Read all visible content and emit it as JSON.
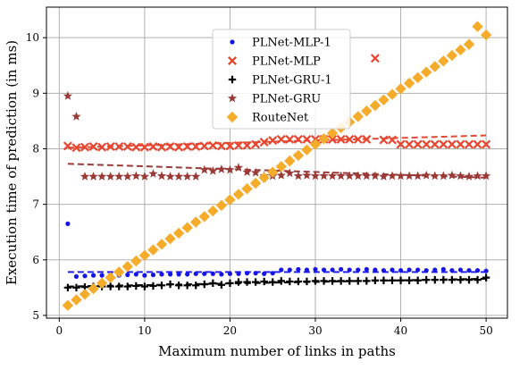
{
  "chart_data": {
    "type": "scatter",
    "title": "",
    "xlabel": "Maximum number of links in paths",
    "ylabel": "Execution time of prediction (in ms)",
    "xlim": [
      -1.5,
      52.5
    ],
    "ylim": [
      4.95,
      10.55
    ],
    "xticks": [
      0,
      10,
      20,
      30,
      40,
      50
    ],
    "yticks": [
      5,
      6,
      7,
      8,
      9,
      10
    ],
    "grid": true,
    "legend_position": "top-center",
    "series": [
      {
        "name": "PLNet-MLP-1",
        "marker": "dot",
        "color": "#1515e6",
        "trend_color": "#2222ee",
        "trend": [
          5.78,
          5.78
        ],
        "points": [
          [
            1,
            6.65
          ],
          [
            2,
            5.7
          ],
          [
            3,
            5.71
          ],
          [
            4,
            5.72
          ],
          [
            5,
            5.72
          ],
          [
            6,
            5.73
          ],
          [
            7,
            5.72
          ],
          [
            8,
            5.73
          ],
          [
            9,
            5.74
          ],
          [
            10,
            5.72
          ],
          [
            11,
            5.73
          ],
          [
            12,
            5.74
          ],
          [
            13,
            5.74
          ],
          [
            14,
            5.74
          ],
          [
            15,
            5.74
          ],
          [
            16,
            5.75
          ],
          [
            17,
            5.75
          ],
          [
            18,
            5.75
          ],
          [
            19,
            5.74
          ],
          [
            20,
            5.75
          ],
          [
            21,
            5.75
          ],
          [
            22,
            5.76
          ],
          [
            23,
            5.76
          ],
          [
            24,
            5.75
          ],
          [
            25,
            5.76
          ],
          [
            26,
            5.82
          ],
          [
            27,
            5.82
          ],
          [
            28,
            5.83
          ],
          [
            29,
            5.82
          ],
          [
            30,
            5.83
          ],
          [
            31,
            5.82
          ],
          [
            32,
            5.82
          ],
          [
            33,
            5.83
          ],
          [
            34,
            5.82
          ],
          [
            35,
            5.82
          ],
          [
            36,
            5.83
          ],
          [
            37,
            5.82
          ],
          [
            38,
            5.81
          ],
          [
            39,
            5.82
          ],
          [
            40,
            5.81
          ],
          [
            41,
            5.82
          ],
          [
            42,
            5.82
          ],
          [
            43,
            5.81
          ],
          [
            44,
            5.82
          ],
          [
            45,
            5.83
          ],
          [
            46,
            5.81
          ],
          [
            47,
            5.82
          ],
          [
            48,
            5.81
          ],
          [
            49,
            5.81
          ],
          [
            50,
            5.8
          ]
        ]
      },
      {
        "name": "PLNet-MLP",
        "marker": "x",
        "color": "#e8452e",
        "trend_color": "#e04a35",
        "trend": [
          8.02,
          8.24
        ],
        "points": [
          [
            1,
            8.05
          ],
          [
            2,
            8.02
          ],
          [
            3,
            8.03
          ],
          [
            4,
            8.04
          ],
          [
            5,
            8.03
          ],
          [
            6,
            8.04
          ],
          [
            7,
            8.04
          ],
          [
            8,
            8.04
          ],
          [
            9,
            8.03
          ],
          [
            10,
            8.03
          ],
          [
            11,
            8.04
          ],
          [
            12,
            8.03
          ],
          [
            13,
            8.04
          ],
          [
            14,
            8.03
          ],
          [
            15,
            8.04
          ],
          [
            16,
            8.04
          ],
          [
            17,
            8.05
          ],
          [
            18,
            8.06
          ],
          [
            19,
            8.05
          ],
          [
            20,
            8.05
          ],
          [
            21,
            8.06
          ],
          [
            22,
            8.06
          ],
          [
            23,
            8.08
          ],
          [
            24,
            8.12
          ],
          [
            25,
            8.15
          ],
          [
            26,
            8.17
          ],
          [
            27,
            8.17
          ],
          [
            28,
            8.17
          ],
          [
            29,
            8.17
          ],
          [
            30,
            8.17
          ],
          [
            31,
            8.17
          ],
          [
            32,
            8.17
          ],
          [
            33,
            8.17
          ],
          [
            34,
            8.17
          ],
          [
            35,
            8.17
          ],
          [
            36,
            8.17
          ],
          [
            37,
            9.63
          ],
          [
            38,
            8.16
          ],
          [
            39,
            8.16
          ],
          [
            40,
            8.08
          ],
          [
            41,
            8.08
          ],
          [
            42,
            8.08
          ],
          [
            43,
            8.08
          ],
          [
            44,
            8.08
          ],
          [
            45,
            8.08
          ],
          [
            46,
            8.08
          ],
          [
            47,
            8.08
          ],
          [
            48,
            8.08
          ],
          [
            49,
            8.08
          ],
          [
            50,
            8.08
          ]
        ]
      },
      {
        "name": "PLNet-GRU-1",
        "marker": "plus",
        "color": "#000000",
        "trend_color": "#000000",
        "trend": [
          5.52,
          5.66
        ],
        "points": [
          [
            1,
            5.5
          ],
          [
            2,
            5.5
          ],
          [
            3,
            5.51
          ],
          [
            4,
            5.52
          ],
          [
            5,
            5.52
          ],
          [
            6,
            5.52
          ],
          [
            7,
            5.52
          ],
          [
            8,
            5.52
          ],
          [
            9,
            5.53
          ],
          [
            10,
            5.52
          ],
          [
            11,
            5.53
          ],
          [
            12,
            5.54
          ],
          [
            13,
            5.56
          ],
          [
            14,
            5.54
          ],
          [
            15,
            5.54
          ],
          [
            16,
            5.54
          ],
          [
            17,
            5.56
          ],
          [
            18,
            5.58
          ],
          [
            19,
            5.55
          ],
          [
            20,
            5.58
          ],
          [
            21,
            5.6
          ],
          [
            22,
            5.6
          ],
          [
            23,
            5.6
          ],
          [
            24,
            5.61
          ],
          [
            25,
            5.6
          ],
          [
            26,
            5.62
          ],
          [
            27,
            5.61
          ],
          [
            28,
            5.61
          ],
          [
            29,
            5.61
          ],
          [
            30,
            5.62
          ],
          [
            31,
            5.62
          ],
          [
            32,
            5.62
          ],
          [
            33,
            5.62
          ],
          [
            34,
            5.62
          ],
          [
            35,
            5.62
          ],
          [
            36,
            5.62
          ],
          [
            37,
            5.63
          ],
          [
            38,
            5.63
          ],
          [
            39,
            5.63
          ],
          [
            40,
            5.63
          ],
          [
            41,
            5.63
          ],
          [
            42,
            5.63
          ],
          [
            43,
            5.64
          ],
          [
            44,
            5.64
          ],
          [
            45,
            5.64
          ],
          [
            46,
            5.64
          ],
          [
            47,
            5.64
          ],
          [
            48,
            5.64
          ],
          [
            49,
            5.64
          ],
          [
            50,
            5.68
          ]
        ]
      },
      {
        "name": "PLNet-GRU",
        "marker": "star",
        "color": "#9a3a36",
        "trend_color": "#9a3a36",
        "trend": [
          7.73,
          7.48
        ],
        "points": [
          [
            1,
            8.95
          ],
          [
            2,
            8.58
          ],
          [
            3,
            7.5
          ],
          [
            4,
            7.5
          ],
          [
            5,
            7.5
          ],
          [
            6,
            7.5
          ],
          [
            7,
            7.5
          ],
          [
            8,
            7.5
          ],
          [
            9,
            7.51
          ],
          [
            10,
            7.5
          ],
          [
            11,
            7.55
          ],
          [
            12,
            7.51
          ],
          [
            13,
            7.5
          ],
          [
            14,
            7.5
          ],
          [
            15,
            7.5
          ],
          [
            16,
            7.5
          ],
          [
            17,
            7.62
          ],
          [
            18,
            7.6
          ],
          [
            19,
            7.63
          ],
          [
            20,
            7.62
          ],
          [
            21,
            7.66
          ],
          [
            22,
            7.58
          ],
          [
            23,
            7.57
          ],
          [
            24,
            7.51
          ],
          [
            25,
            7.51
          ],
          [
            26,
            7.52
          ],
          [
            27,
            7.56
          ],
          [
            28,
            7.51
          ],
          [
            29,
            7.52
          ],
          [
            30,
            7.51
          ],
          [
            31,
            7.51
          ],
          [
            32,
            7.51
          ],
          [
            33,
            7.51
          ],
          [
            34,
            7.51
          ],
          [
            35,
            7.51
          ],
          [
            36,
            7.51
          ],
          [
            37,
            7.51
          ],
          [
            38,
            7.5
          ],
          [
            39,
            7.51
          ],
          [
            40,
            7.51
          ],
          [
            41,
            7.51
          ],
          [
            42,
            7.51
          ],
          [
            43,
            7.52
          ],
          [
            44,
            7.51
          ],
          [
            45,
            7.51
          ],
          [
            46,
            7.52
          ],
          [
            47,
            7.51
          ],
          [
            48,
            7.5
          ],
          [
            49,
            7.51
          ],
          [
            50,
            7.51
          ]
        ]
      },
      {
        "name": "RouteNet",
        "marker": "diamond",
        "color": "#f5ac2a",
        "trend_color": "#f5ac2a",
        "trend": [
          5.18,
          10.05
        ],
        "points": [
          [
            1,
            5.18
          ],
          [
            2,
            5.28
          ],
          [
            3,
            5.38
          ],
          [
            4,
            5.48
          ],
          [
            5,
            5.58
          ],
          [
            6,
            5.68
          ],
          [
            7,
            5.78
          ],
          [
            8,
            5.88
          ],
          [
            9,
            5.98
          ],
          [
            10,
            6.08
          ],
          [
            11,
            6.18
          ],
          [
            12,
            6.28
          ],
          [
            13,
            6.38
          ],
          [
            14,
            6.48
          ],
          [
            15,
            6.58
          ],
          [
            16,
            6.68
          ],
          [
            17,
            6.78
          ],
          [
            18,
            6.88
          ],
          [
            19,
            6.98
          ],
          [
            20,
            7.08
          ],
          [
            21,
            7.18
          ],
          [
            22,
            7.28
          ],
          [
            23,
            7.38
          ],
          [
            24,
            7.48
          ],
          [
            25,
            7.58
          ],
          [
            26,
            7.68
          ],
          [
            27,
            7.78
          ],
          [
            28,
            7.88
          ],
          [
            29,
            7.98
          ],
          [
            30,
            8.08
          ],
          [
            31,
            8.18
          ],
          [
            32,
            8.28
          ],
          [
            33,
            8.38
          ],
          [
            34,
            8.48
          ],
          [
            35,
            8.58
          ],
          [
            36,
            8.68
          ],
          [
            37,
            8.78
          ],
          [
            38,
            8.88
          ],
          [
            39,
            8.98
          ],
          [
            40,
            9.08
          ],
          [
            41,
            9.18
          ],
          [
            42,
            9.28
          ],
          [
            43,
            9.38
          ],
          [
            44,
            9.48
          ],
          [
            45,
            9.58
          ],
          [
            46,
            9.68
          ],
          [
            47,
            9.78
          ],
          [
            48,
            9.88
          ],
          [
            49,
            10.2
          ],
          [
            50,
            10.05
          ]
        ]
      }
    ]
  }
}
